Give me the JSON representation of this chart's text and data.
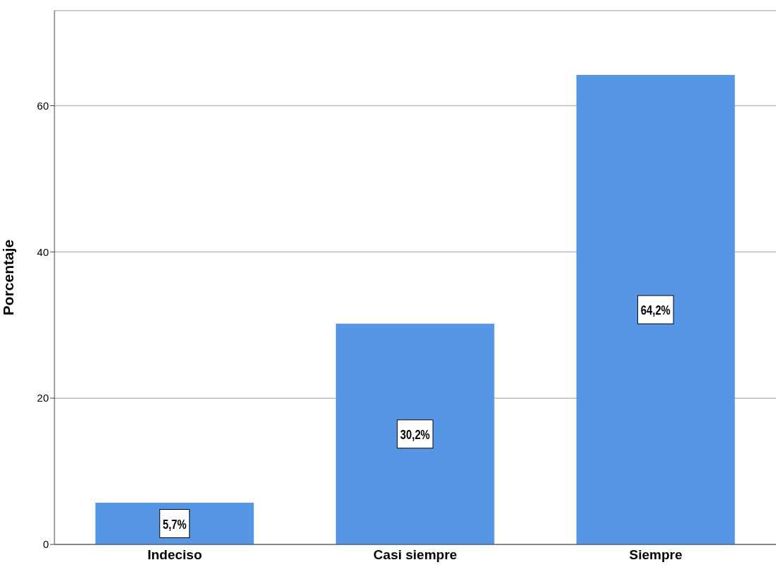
{
  "chart_data": {
    "type": "bar",
    "ylabel": "Porcentaje",
    "categories": [
      "Indeciso",
      "Casi siempre",
      "Siempre"
    ],
    "values": [
      5.7,
      30.2,
      64.2
    ],
    "value_labels": [
      "5,7%",
      "30,2%",
      "64,2%"
    ],
    "color": "#5596e5",
    "ylim": [
      0,
      73
    ],
    "yticks": [
      0,
      20,
      40,
      60
    ],
    "grid": "y"
  }
}
